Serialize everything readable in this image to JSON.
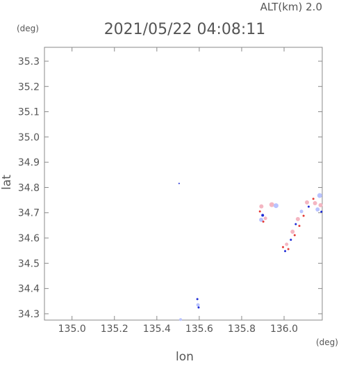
{
  "header": {
    "alt_label": "ALT(km) 2.0",
    "timestamp": "2021/05/22 04:08:11",
    "y_unit": "(deg)",
    "x_unit": "(deg)"
  },
  "colors": {
    "axis": "#888888",
    "text": "#555555",
    "blob_red": "#e53935",
    "blob_blue": "#1e2bd6",
    "blob_pink": "#f4b6c2",
    "blob_lightblue": "#b9c3ff"
  },
  "chart_data": {
    "type": "scatter",
    "title": "2021/05/22 04:08:11",
    "xlabel": "lon",
    "ylabel": "lat",
    "xlim": [
      134.87,
      136.18
    ],
    "ylim": [
      34.275,
      35.355
    ],
    "x_ticks": [
      135.0,
      135.2,
      135.4,
      135.6,
      135.8,
      136.0
    ],
    "x_tick_labels": [
      "135.0",
      "135.2",
      "135.4",
      "135.6",
      "135.8",
      "136.0"
    ],
    "y_ticks": [
      34.3,
      34.4,
      34.5,
      34.6,
      34.7,
      34.8,
      34.9,
      35.0,
      35.1,
      35.2,
      35.3
    ],
    "y_tick_labels": [
      "34.3",
      "34.4",
      "34.5",
      "34.6",
      "34.7",
      "34.8",
      "34.9",
      "35.0",
      "35.1",
      "35.2",
      "35.3"
    ],
    "grid": false,
    "points": [
      {
        "x": 135.505,
        "y": 34.816,
        "c": "blob_blue",
        "s": 1
      },
      {
        "x": 135.591,
        "y": 34.358,
        "c": "blob_blue",
        "s": 1.5
      },
      {
        "x": 135.594,
        "y": 34.335,
        "c": "blob_lightblue",
        "s": 2.5
      },
      {
        "x": 135.597,
        "y": 34.325,
        "c": "blob_blue",
        "s": 1.5
      },
      {
        "x": 135.512,
        "y": 34.277,
        "c": "blob_lightblue",
        "s": 2
      },
      {
        "x": 135.893,
        "y": 34.725,
        "c": "blob_pink",
        "s": 3
      },
      {
        "x": 135.886,
        "y": 34.705,
        "c": "blob_red",
        "s": 1.5
      },
      {
        "x": 135.899,
        "y": 34.69,
        "c": "blob_blue",
        "s": 2
      },
      {
        "x": 135.892,
        "y": 34.672,
        "c": "blob_lightblue",
        "s": 3
      },
      {
        "x": 135.902,
        "y": 34.665,
        "c": "blob_red",
        "s": 1.5
      },
      {
        "x": 135.912,
        "y": 34.678,
        "c": "blob_pink",
        "s": 2.5
      },
      {
        "x": 135.942,
        "y": 34.732,
        "c": "blob_pink",
        "s": 3.5
      },
      {
        "x": 135.962,
        "y": 34.728,
        "c": "blob_lightblue",
        "s": 3.5
      },
      {
        "x": 135.995,
        "y": 34.564,
        "c": "blob_red",
        "s": 1.5
      },
      {
        "x": 136.005,
        "y": 34.548,
        "c": "blob_blue",
        "s": 1.5
      },
      {
        "x": 136.012,
        "y": 34.575,
        "c": "blob_pink",
        "s": 2.5
      },
      {
        "x": 136.02,
        "y": 34.556,
        "c": "blob_red",
        "s": 1.5
      },
      {
        "x": 136.032,
        "y": 34.593,
        "c": "blob_blue",
        "s": 1.5
      },
      {
        "x": 136.04,
        "y": 34.625,
        "c": "blob_pink",
        "s": 3
      },
      {
        "x": 136.05,
        "y": 34.611,
        "c": "blob_red",
        "s": 1.5
      },
      {
        "x": 136.055,
        "y": 34.655,
        "c": "blob_blue",
        "s": 1.5
      },
      {
        "x": 136.065,
        "y": 34.675,
        "c": "blob_pink",
        "s": 3
      },
      {
        "x": 136.072,
        "y": 34.648,
        "c": "blob_red",
        "s": 1.5
      },
      {
        "x": 136.082,
        "y": 34.705,
        "c": "blob_lightblue",
        "s": 2.5
      },
      {
        "x": 136.092,
        "y": 34.688,
        "c": "blob_red",
        "s": 1.5
      },
      {
        "x": 136.108,
        "y": 34.741,
        "c": "blob_pink",
        "s": 3
      },
      {
        "x": 136.116,
        "y": 34.724,
        "c": "blob_blue",
        "s": 1.5
      },
      {
        "x": 136.138,
        "y": 34.755,
        "c": "blob_red",
        "s": 1.5
      },
      {
        "x": 136.146,
        "y": 34.738,
        "c": "blob_pink",
        "s": 3
      },
      {
        "x": 136.158,
        "y": 34.713,
        "c": "blob_lightblue",
        "s": 3
      },
      {
        "x": 136.168,
        "y": 34.768,
        "c": "blob_lightblue",
        "s": 3.5
      },
      {
        "x": 136.172,
        "y": 34.73,
        "c": "blob_pink",
        "s": 3
      },
      {
        "x": 136.176,
        "y": 34.704,
        "c": "blob_blue",
        "s": 1.5
      }
    ]
  }
}
